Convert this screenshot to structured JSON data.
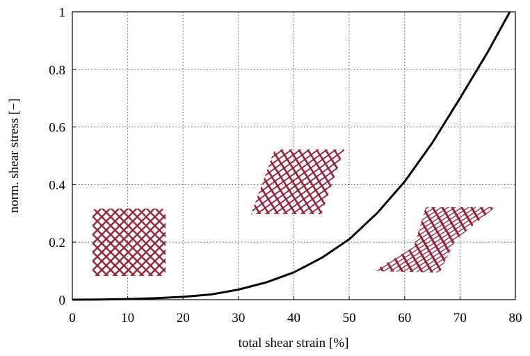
{
  "chart_data": {
    "type": "line",
    "x_label": "total shear strain [%]",
    "y_label": "norm. shear stress [−]",
    "x": [
      0,
      5,
      10,
      15,
      20,
      25,
      30,
      35,
      40,
      45,
      50,
      55,
      60,
      65,
      70,
      75,
      79
    ],
    "values": [
      0,
      0.0005,
      0.002,
      0.005,
      0.01,
      0.018,
      0.035,
      0.06,
      0.095,
      0.145,
      0.21,
      0.3,
      0.41,
      0.545,
      0.7,
      0.86,
      1.0
    ],
    "color": "#000000",
    "xlim": [
      0,
      80
    ],
    "xticks": [
      0,
      10,
      20,
      30,
      40,
      50,
      60,
      70,
      80
    ],
    "ylim": [
      0,
      1
    ],
    "yticks": [
      0,
      0.2,
      0.4,
      0.6,
      0.8,
      1
    ],
    "grid": true
  }
}
